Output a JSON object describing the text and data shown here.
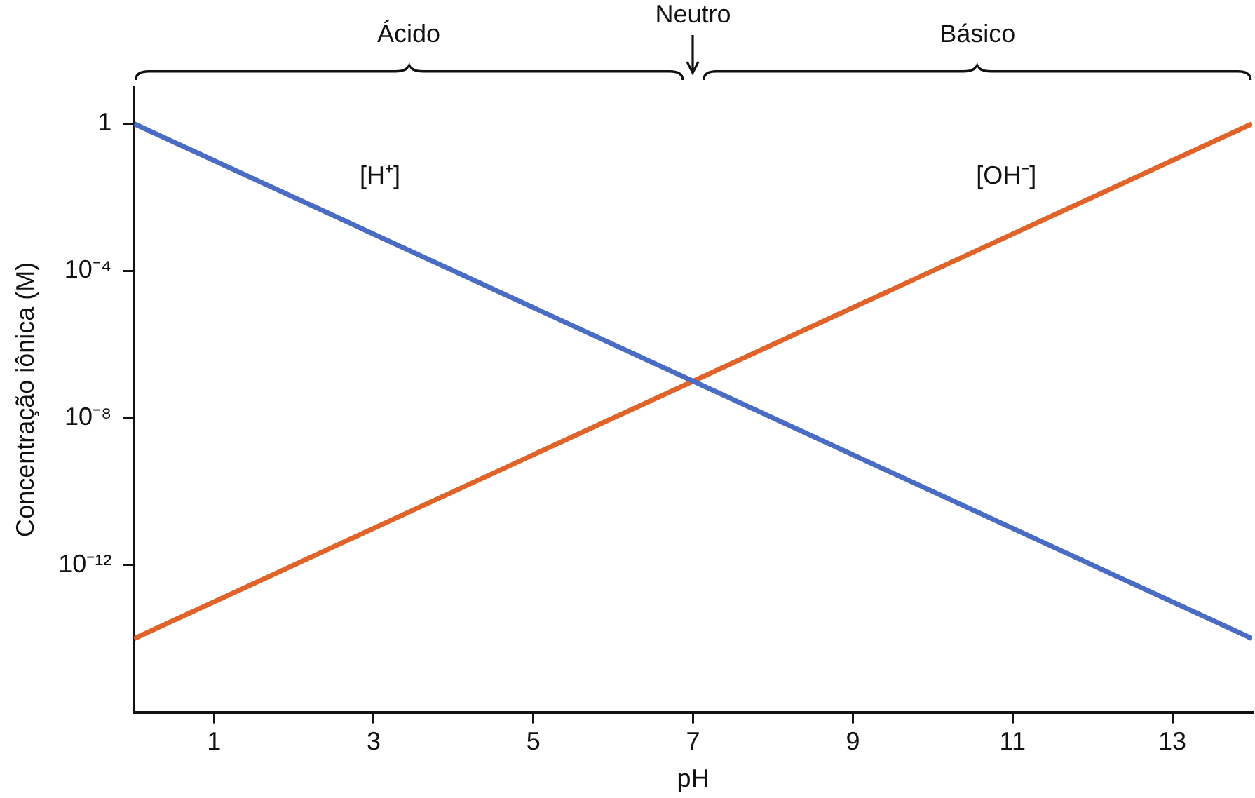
{
  "chart_data": {
    "type": "line",
    "xlabel": "pH",
    "ylabel": "Concentração iônica (M)",
    "x": [
      0,
      14
    ],
    "series": [
      {
        "name": "[H⁺]",
        "color": "#4a6cc4",
        "values": [
          1,
          1e-14
        ]
      },
      {
        "name": "[OH⁻]",
        "color": "#e0632a",
        "values": [
          1e-14,
          1
        ]
      }
    ],
    "xlim": [
      0,
      14
    ],
    "xticks": [
      1,
      3,
      5,
      7,
      9,
      11,
      13
    ],
    "ylim": [
      1e-16,
      10
    ],
    "yticks": [
      {
        "value": 1,
        "label": "1"
      },
      {
        "value": 0.0001,
        "label": "10⁻⁴"
      },
      {
        "value": 1e-08,
        "label": "10⁻⁸"
      },
      {
        "value": 1e-12,
        "label": "10⁻¹²"
      }
    ],
    "log": "y",
    "grid": false,
    "legend": false,
    "marker": "none",
    "line_style": "solid",
    "annotations": [
      "Ácido",
      "Neutro",
      "Básico"
    ]
  }
}
